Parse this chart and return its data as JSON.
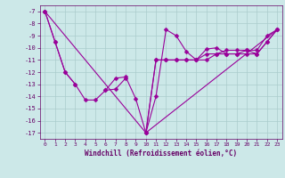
{
  "x": [
    0,
    1,
    2,
    3,
    4,
    5,
    6,
    7,
    8,
    9,
    10,
    11,
    12,
    13,
    14,
    15,
    16,
    17,
    18,
    19,
    20,
    21,
    22,
    23
  ],
  "series1": [
    -7.0,
    -9.5,
    -12.0,
    -13.0,
    -14.3,
    -14.3,
    -13.5,
    -12.5,
    -12.4,
    -14.2,
    -17.0,
    -14.0,
    -8.5,
    -9.0,
    -10.3,
    -11.0,
    -10.1,
    -10.0,
    -10.5,
    -10.5,
    -10.2,
    -10.2,
    -9.0,
    -8.5
  ],
  "series2": [
    -7.0,
    -9.5,
    -12.0,
    -13.0,
    null,
    null,
    -13.5,
    -13.4,
    -12.5,
    null,
    -17.0,
    -11.0,
    -11.0,
    -11.0,
    -11.0,
    -11.0,
    -11.0,
    -10.5,
    -10.5,
    -10.5,
    -10.5,
    -10.5,
    -9.5,
    -8.5
  ],
  "series3": [
    -7.0,
    null,
    null,
    null,
    null,
    null,
    null,
    null,
    null,
    null,
    -17.0,
    -11.0,
    -11.0,
    -11.0,
    -11.0,
    -11.0,
    -10.5,
    -10.5,
    -10.2,
    -10.2,
    -10.2,
    -10.5,
    -9.5,
    -8.5
  ],
  "line4_x": [
    0,
    10,
    23
  ],
  "line4_y": [
    -7.0,
    -17.0,
    -8.5
  ],
  "color": "#990099",
  "bg_color": "#cce8e8",
  "grid_color": "#aacccc",
  "xlabel": "Windchill (Refroidissement éolien,°C)",
  "ylim": [
    -17.5,
    -6.5
  ],
  "xlim": [
    -0.5,
    23.5
  ],
  "yticks": [
    -17,
    -16,
    -15,
    -14,
    -13,
    -12,
    -11,
    -10,
    -9,
    -8,
    -7
  ],
  "xticks": [
    0,
    1,
    2,
    3,
    4,
    5,
    6,
    7,
    8,
    9,
    10,
    11,
    12,
    13,
    14,
    15,
    16,
    17,
    18,
    19,
    20,
    21,
    22,
    23
  ]
}
